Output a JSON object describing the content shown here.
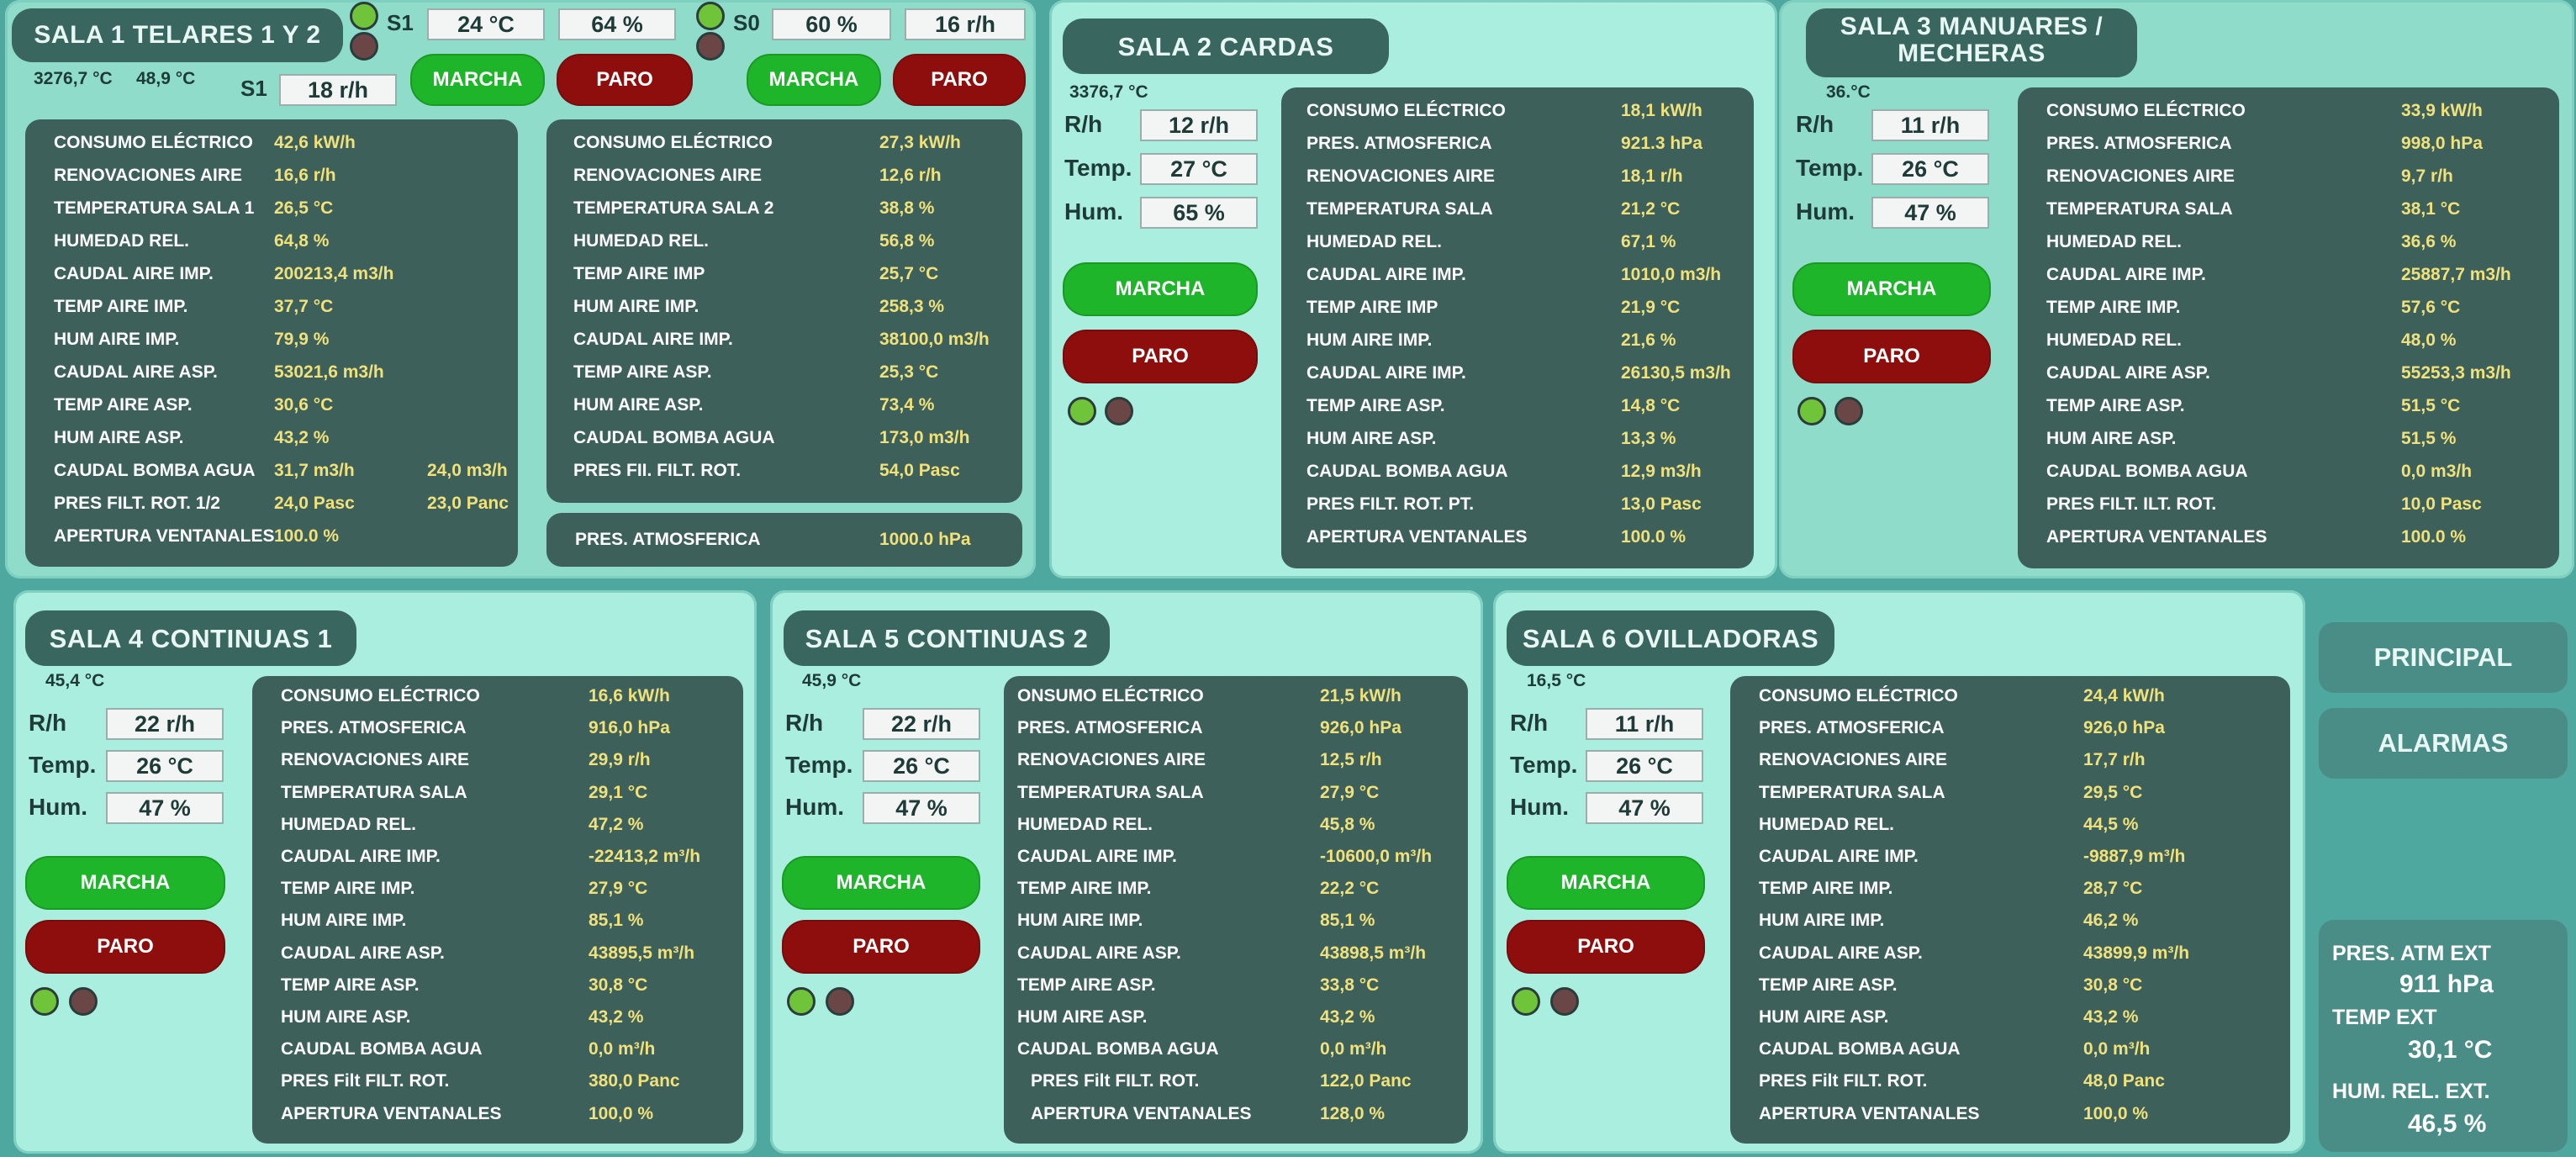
{
  "nav": {
    "principal": "PRINCIPAL",
    "alarmas": "ALARMAS"
  },
  "external": {
    "pres_label": "PRES. ATM EXT",
    "pres_value": "911 hPa",
    "temp_label": "TEMP EXT",
    "temp_value": "30,1 °C",
    "hum_label": "HUM. REL. EXT.",
    "hum_value": "46,5 %"
  },
  "sala1": {
    "title": "SALA 1 TELARES 1 Y 2",
    "val_a": "3276,7 °C",
    "val_b": "48,9 °C",
    "s1_label": "S1",
    "s1_temp": "24 °C",
    "s1_hum": "64 %",
    "s1_rh_label": "S1",
    "s1_rh": "18 r/h",
    "s0_label": "S0",
    "s0_hum": "60 %",
    "s0_rh": "16 r/h",
    "marcha": "MARCHA",
    "paro": "PARO",
    "left_rows": [
      {
        "k": "CONSUMO ELÉCTRICO",
        "v": "42,6 kW/h"
      },
      {
        "k": "RENOVACIONES AIRE",
        "v": "16,6 r/h"
      },
      {
        "k": "TEMPERATURA SALA 1",
        "v": "26,5 °C"
      },
      {
        "k": "HUMEDAD REL.",
        "v": "64,8 %"
      },
      {
        "k": "CAUDAL AIRE IMP.",
        "v": "200213,4 m3/h"
      },
      {
        "k": "TEMP AIRE IMP.",
        "v": "37,7 °C"
      },
      {
        "k": "HUM AIRE IMP.",
        "v": "79,9 %"
      },
      {
        "k": "CAUDAL AIRE ASP.",
        "v": "53021,6 m3/h"
      },
      {
        "k": "TEMP AIRE ASP.",
        "v": "30,6 °C"
      },
      {
        "k": "HUM AIRE ASP.",
        "v": "43,2 %"
      },
      {
        "k": "CAUDAL BOMBA AGUA",
        "v": "31,7 m3/h",
        "v2": "24,0 m3/h"
      },
      {
        "k": "PRES FILT. ROT. 1/2",
        "v": "24,0 Pasc",
        "v2": "23,0 Panc"
      },
      {
        "k": "APERTURA VENTANALES",
        "v": "100.0 %"
      }
    ],
    "right_rows": [
      {
        "k": "CONSUMO ELÉCTRICO",
        "v": "27,3 kW/h"
      },
      {
        "k": "RENOVACIONES AIRE",
        "v": "12,6 r/h"
      },
      {
        "k": "TEMPERATURA SALA 2",
        "v": "38,8 %"
      },
      {
        "k": "HUMEDAD REL.",
        "v": "56,8 %"
      },
      {
        "k": "TEMP AIRE IMP",
        "v": "25,7 °C"
      },
      {
        "k": "HUM AIRE IMP.",
        "v": "258,3 %"
      },
      {
        "k": "CAUDAL AIRE IMP.",
        "v": "38100,0 m3/h"
      },
      {
        "k": "TEMP AIRE ASP.",
        "v": "25,3 °C"
      },
      {
        "k": "HUM AIRE ASP.",
        "v": "73,4 %"
      },
      {
        "k": "CAUDAL BOMBA AGUA",
        "v": "173,0 m3/h"
      },
      {
        "k": "PRES FII. FILT. ROT.",
        "v": "54,0 Pasc"
      }
    ],
    "atm_label": "PRES. ATMOSFERICA",
    "atm_value": "1000.0 hPa"
  },
  "sala2": {
    "title": "SALA 2 CARDAS",
    "small": "3376,7 °C",
    "rh_label": "R/h",
    "rh": "12 r/h",
    "temp_label": "Temp.",
    "temp": "27 °C",
    "hum_label": "Hum.",
    "hum": "65 %",
    "marcha": "MARCHA",
    "paro": "PARO",
    "rows": [
      {
        "k": "CONSUMO ELÉCTRICO",
        "v": "18,1 kW/h"
      },
      {
        "k": "PRES. ATMOSFERICA",
        "v": "921.3 hPa"
      },
      {
        "k": "RENOVACIONES AIRE",
        "v": "18,1 r/h"
      },
      {
        "k": "TEMPERATURA SALA",
        "v": "21,2 °C"
      },
      {
        "k": "HUMEDAD REL.",
        "v": "67,1 %"
      },
      {
        "k": "CAUDAL AIRE IMP.",
        "v": "1010,0 m3/h"
      },
      {
        "k": "TEMP AIRE IMP",
        "v": "21,9 °C"
      },
      {
        "k": "HUM AIRE IMP.",
        "v": "21,6 %"
      },
      {
        "k": "CAUDAL AIRE IMP.",
        "v": "26130,5 m3/h"
      },
      {
        "k": "TEMP AIRE ASP.",
        "v": "14,8 °C"
      },
      {
        "k": "HUM AIRE ASP.",
        "v": "13,3 %"
      },
      {
        "k": "CAUDAL BOMBA AGUA",
        "v": "12,9 m3/h"
      },
      {
        "k": "PRES FILT. ROT. PT.",
        "v": "13,0 Pasc"
      },
      {
        "k": "APERTURA VENTANALES",
        "v": "100.0 %"
      }
    ]
  },
  "sala3": {
    "title_line1": "SALA 3 MANUARES /",
    "title_line2": "MECHERAS",
    "small": "36.°C",
    "rh_label": "R/h",
    "rh": "11 r/h",
    "temp_label": "Temp.",
    "temp": "26 °C",
    "hum_label": "Hum.",
    "hum": "47 %",
    "marcha": "MARCHA",
    "paro": "PARO",
    "rows": [
      {
        "k": "CONSUMO ELÉCTRICO",
        "v": "33,9 kW/h"
      },
      {
        "k": "PRES. ATMOSFERICA",
        "v": "998,0 hPa"
      },
      {
        "k": "RENOVACIONES AIRE",
        "v": "9,7 r/h"
      },
      {
        "k": "TEMPERATURA SALA",
        "v": "38,1 °C"
      },
      {
        "k": "HUMEDAD REL.",
        "v": "36,6 %"
      },
      {
        "k": "CAUDAL AIRE IMP.",
        "v": "25887,7 m3/h"
      },
      {
        "k": "TEMP AIRE IMP.",
        "v": "57,6 °C"
      },
      {
        "k": "HUMEDAD REL.",
        "v": "48,0 %"
      },
      {
        "k": "CAUDAL AIRE ASP.",
        "v": "55253,3 m3/h"
      },
      {
        "k": "TEMP AIRE ASP.",
        "v": "51,5 °C"
      },
      {
        "k": "HUM AIRE ASP.",
        "v": "51,5 %"
      },
      {
        "k": "CAUDAL BOMBA AGUA",
        "v": "0,0 m3/h"
      },
      {
        "k": "PRES FILT. ILT. ROT.",
        "v": "10,0 Pasc"
      },
      {
        "k": "APERTURA VENTANALES",
        "v": "100.0 %"
      }
    ]
  },
  "sala4": {
    "title": "SALA 4 CONTINUAS 1",
    "small": "45,4 °C",
    "rh_label": "R/h",
    "rh": "22 r/h",
    "temp_label": "Temp.",
    "temp": "26 °C",
    "hum_label": "Hum.",
    "hum": "47 %",
    "marcha": "MARCHA",
    "paro": "PARO",
    "rows": [
      {
        "k": "CONSUMO ELÉCTRICO",
        "v": "16,6 kW/h"
      },
      {
        "k": "PRES. ATMOSFERICA",
        "v": "916,0 hPa"
      },
      {
        "k": "RENOVACIONES AIRE",
        "v": "29,9 r/h"
      },
      {
        "k": "TEMPERATURA SALA",
        "v": "29,1 °C"
      },
      {
        "k": "HUMEDAD REL.",
        "v": "47,2 %"
      },
      {
        "k": "CAUDAL AIRE IMP.",
        "v": "-22413,2 m³/h"
      },
      {
        "k": "TEMP AIRE IMP.",
        "v": "27,9 °C"
      },
      {
        "k": "HUM AIRE IMP.",
        "v": "85,1 %"
      },
      {
        "k": "CAUDAL AIRE ASP.",
        "v": "43895,5 m³/h"
      },
      {
        "k": "TEMP AIRE ASP.",
        "v": "30,8 °C"
      },
      {
        "k": "HUM AIRE ASP.",
        "v": "43,2 %"
      },
      {
        "k": "CAUDAL BOMBA AGUA",
        "v": "0,0 m³/h"
      },
      {
        "k": "PRES Filt FILT. ROT.",
        "v": "380,0 Panc"
      },
      {
        "k": "APERTURA VENTANALES",
        "v": "100,0 %"
      }
    ]
  },
  "sala5": {
    "title": "SALA 5 CONTINUAS 2",
    "small": "45,9 °C",
    "rh_label": "R/h",
    "rh": "22 r/h",
    "temp_label": "Temp.",
    "temp": "26 °C",
    "hum_label": "Hum.",
    "hum": "47 %",
    "marcha": "MARCHA",
    "paro": "PARO",
    "rows": [
      {
        "k": "ONSUMO ELÉCTRICO",
        "v": "21,5 kW/h"
      },
      {
        "k": "PRES. ATMOSFERICA",
        "v": "926,0 hPa"
      },
      {
        "k": "RENOVACIONES AIRE",
        "v": "12,5 r/h"
      },
      {
        "k": "TEMPERATURA SALA",
        "v": "27,9 °C"
      },
      {
        "k": "HUMEDAD REL.",
        "v": "45,8 %"
      },
      {
        "k": "CAUDAL AIRE IMP.",
        "v": "-10600,0 m³/h"
      },
      {
        "k": "TEMP AIRE IMP.",
        "v": "22,2 °C"
      },
      {
        "k": "HUM AIRE IMP.",
        "v": "85,1 %"
      },
      {
        "k": "CAUDAL AIRE ASP.",
        "v": "43898,5 m³/h"
      },
      {
        "k": "TEMP AIRE ASP.",
        "v": "33,8 °C"
      },
      {
        "k": "HUM AIRE ASP.",
        "v": "43,2 %"
      },
      {
        "k": "CAUDAL BOMBA AGUA",
        "v": "0,0 m³/h"
      },
      {
        "k": "PRES Filt FILT. ROT.",
        "v": "122,0 Panc",
        "indent": true
      },
      {
        "k": "APERTURA VENTANALES",
        "v": "128,0 %",
        "indent": true
      }
    ]
  },
  "sala6": {
    "title": "SALA 6 OVILLADORAS",
    "small": "16,5 °C",
    "rh_label": "R/h",
    "rh": "11 r/h",
    "temp_label": "Temp.",
    "temp": "26 °C",
    "hum_label": "Hum.",
    "hum": "47 %",
    "marcha": "MARCHA",
    "paro": "PARO",
    "rows": [
      {
        "k": "CONSUMO ELÉCTRICO",
        "v": "24,4 kW/h"
      },
      {
        "k": "PRES. ATMOSFERICA",
        "v": "926,0 hPa"
      },
      {
        "k": "RENOVACIONES AIRE",
        "v": "17,7 r/h"
      },
      {
        "k": "TEMPERATURA SALA",
        "v": "29,5 °C"
      },
      {
        "k": "HUMEDAD REL.",
        "v": "44,5 %"
      },
      {
        "k": "CAUDAL AIRE IMP.",
        "v": "-9887,9 m³/h"
      },
      {
        "k": "TEMP AIRE IMP.",
        "v": "28,7 °C"
      },
      {
        "k": "HUM AIRE IMP.",
        "v": "46,2 %"
      },
      {
        "k": "CAUDAL AIRE ASP.",
        "v": "43899,9 m³/h"
      },
      {
        "k": "TEMP AIRE ASP.",
        "v": "30,8 °C"
      },
      {
        "k": "HUM AIRE ASP.",
        "v": "43,2 %"
      },
      {
        "k": "CAUDAL BOMBA AGUA",
        "v": "0,0 m³/h"
      },
      {
        "k": "PRES Filt FILT. ROT.",
        "v": "48,0 Panc"
      },
      {
        "k": "APERTURA VENTANALES",
        "v": "100,0 %"
      }
    ]
  }
}
